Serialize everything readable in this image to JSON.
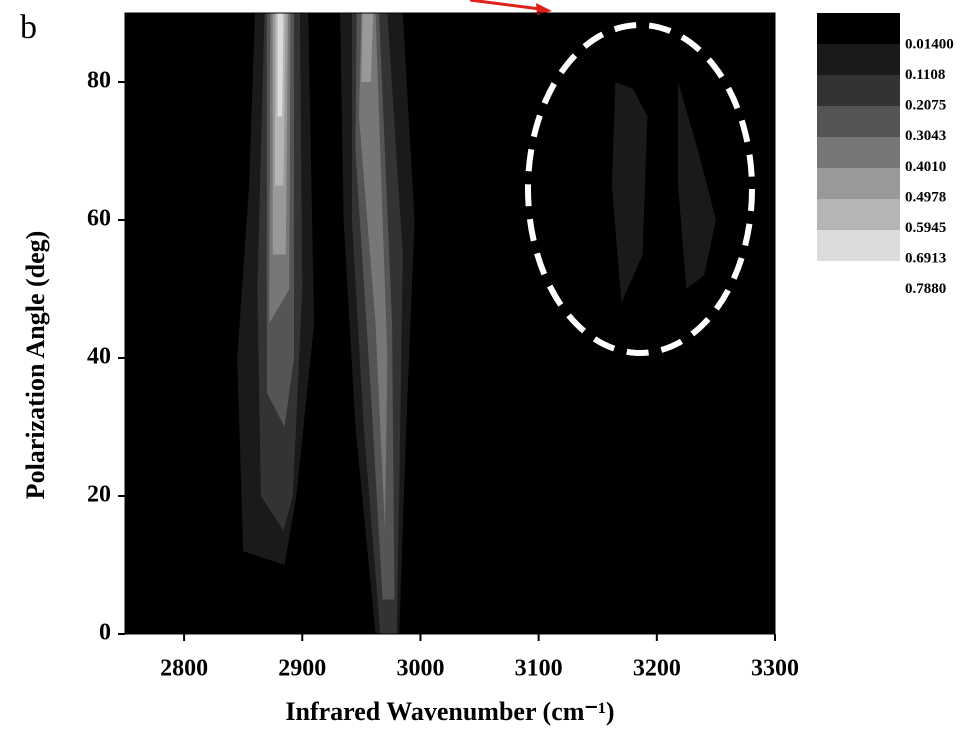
{
  "chart_data": {
    "type": "contour",
    "panel_label": "b",
    "x_label": "Infrared Wavenumber (cm⁻¹)",
    "y_label": "Polarization Angle (deg)",
    "xlim": [
      2750,
      3300
    ],
    "xticks": [
      2800,
      2900,
      3000,
      3100,
      3200,
      3300
    ],
    "ylim": [
      0,
      90
    ],
    "yticks": [
      0,
      20,
      40,
      60,
      80
    ],
    "colorbar": {
      "levels": [
        {
          "value": 0.014,
          "label": "0.01400"
        },
        0.1108,
        0.2075,
        0.3043,
        {
          "value": 0.401,
          "label": "0.4010"
        },
        0.4978,
        0.5945,
        0.6913,
        {
          "value": 0.788,
          "label": "0.7880"
        }
      ],
      "colors": [
        "#000000",
        "#1a1a1a",
        "#333333",
        "#555555",
        "#777777",
        "#999999",
        "#b5b5b5",
        "#dcdcdc"
      ]
    },
    "regions": [
      {
        "z": 0.014,
        "points": [
          [
            2750,
            0
          ],
          [
            3300,
            0
          ],
          [
            3300,
            90
          ],
          [
            2750,
            90
          ]
        ]
      },
      {
        "z": 0.1108,
        "points": [
          [
            2850,
            12
          ],
          [
            2845,
            40
          ],
          [
            2855,
            65
          ],
          [
            2860,
            90
          ],
          [
            2905,
            90
          ],
          [
            2910,
            45
          ],
          [
            2895,
            20
          ],
          [
            2885,
            10
          ]
        ]
      },
      {
        "z": 0.1108,
        "points": [
          [
            2962,
            0
          ],
          [
            2945,
            30
          ],
          [
            2935,
            60
          ],
          [
            2932,
            90
          ],
          [
            2985,
            90
          ],
          [
            2995,
            60
          ],
          [
            2988,
            30
          ],
          [
            2982,
            0
          ]
        ]
      },
      {
        "z": 0.1108,
        "points": [
          [
            3170,
            48
          ],
          [
            3162,
            65
          ],
          [
            3165,
            80
          ],
          [
            3180,
            79
          ],
          [
            3192,
            75
          ],
          [
            3188,
            55
          ]
        ]
      },
      {
        "z": 0.1108,
        "points": [
          [
            3225,
            50
          ],
          [
            3218,
            65
          ],
          [
            3218,
            80
          ],
          [
            3235,
            70
          ],
          [
            3250,
            60
          ],
          [
            3240,
            52
          ]
        ]
      },
      {
        "z": 0.2075,
        "points": [
          [
            2865,
            20
          ],
          [
            2862,
            50
          ],
          [
            2868,
            90
          ],
          [
            2898,
            90
          ],
          [
            2900,
            50
          ],
          [
            2892,
            20
          ],
          [
            2884,
            15
          ]
        ]
      },
      {
        "z": 0.2075,
        "points": [
          [
            2966,
            0
          ],
          [
            2952,
            30
          ],
          [
            2942,
            60
          ],
          [
            2942,
            90
          ],
          [
            2972,
            90
          ],
          [
            2985,
            55
          ],
          [
            2982,
            20
          ],
          [
            2980,
            0
          ]
        ]
      },
      {
        "z": 0.3043,
        "points": [
          [
            2870,
            35
          ],
          [
            2870,
            90
          ],
          [
            2893,
            90
          ],
          [
            2893,
            40
          ],
          [
            2885,
            30
          ]
        ]
      },
      {
        "z": 0.3043,
        "points": [
          [
            2968,
            5
          ],
          [
            2958,
            35
          ],
          [
            2945,
            70
          ],
          [
            2946,
            90
          ],
          [
            2965,
            90
          ],
          [
            2976,
            45
          ],
          [
            2978,
            5
          ]
        ]
      },
      {
        "z": 0.401,
        "points": [
          [
            2872,
            45
          ],
          [
            2873,
            90
          ],
          [
            2890,
            90
          ],
          [
            2889,
            50
          ]
        ]
      },
      {
        "z": 0.401,
        "points": [
          [
            2970,
            15
          ],
          [
            2962,
            45
          ],
          [
            2948,
            75
          ],
          [
            2950,
            90
          ],
          [
            2962,
            90
          ],
          [
            2972,
            40
          ]
        ]
      },
      {
        "z": 0.4978,
        "points": [
          [
            2875,
            55
          ],
          [
            2875,
            90
          ],
          [
            2888,
            90
          ],
          [
            2886,
            55
          ]
        ]
      },
      {
        "z": 0.4978,
        "points": [
          [
            2950,
            80
          ],
          [
            2951,
            90
          ],
          [
            2960,
            90
          ],
          [
            2958,
            80
          ]
        ]
      },
      {
        "z": 0.5945,
        "points": [
          [
            2877,
            65
          ],
          [
            2877,
            90
          ],
          [
            2886,
            90
          ],
          [
            2884,
            65
          ]
        ]
      },
      {
        "z": 0.6913,
        "points": [
          [
            2879,
            75
          ],
          [
            2879,
            90
          ],
          [
            2884,
            90
          ],
          [
            2883,
            75
          ]
        ]
      }
    ]
  }
}
